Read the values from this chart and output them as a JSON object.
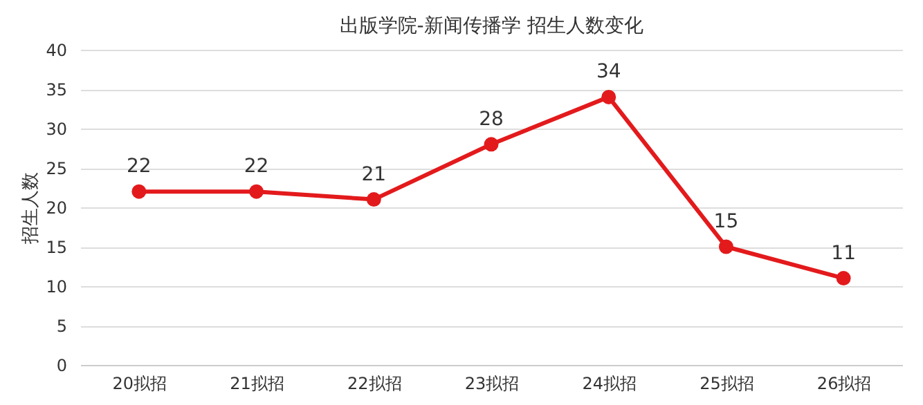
{
  "chart_data": {
    "type": "line",
    "title": "出版学院-新闻传播学 招生人数变化",
    "ylabel": "招生人数",
    "categories": [
      "20拟招",
      "21拟招",
      "22拟招",
      "23拟招",
      "24拟招",
      "25拟招",
      "26拟招"
    ],
    "values": [
      22,
      22,
      21,
      28,
      34,
      15,
      11
    ],
    "color": "#e31a1c",
    "ylim": [
      0,
      40
    ],
    "yticks": [
      0,
      5,
      10,
      15,
      20,
      25,
      30,
      35,
      40
    ],
    "grid": "y",
    "marker": "circle",
    "line_style": "solid",
    "data_labels": true
  }
}
